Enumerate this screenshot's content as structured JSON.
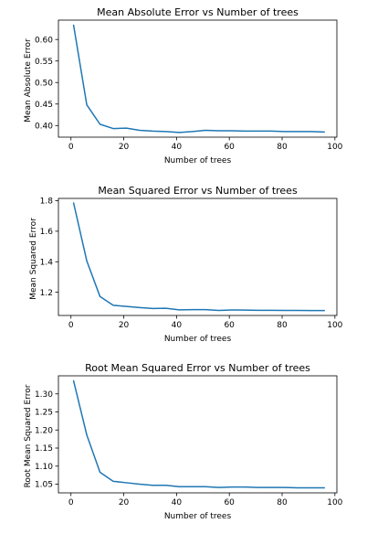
{
  "figure": {
    "background": "#ffffff"
  },
  "chart_data": [
    {
      "type": "line",
      "title": "Mean Absolute Error vs Number of trees",
      "xlabel": "Number of trees",
      "ylabel": "Mean Absolute Error",
      "xlim": [
        -4.75,
        100.75
      ],
      "ylim": [
        0.373,
        0.645
      ],
      "xticks": [
        0,
        20,
        40,
        60,
        80,
        100
      ],
      "xtick_labels": [
        "0",
        "20",
        "40",
        "60",
        "80",
        "100"
      ],
      "yticks": [
        0.4,
        0.45,
        0.5,
        0.55,
        0.6
      ],
      "ytick_labels": [
        "0.40",
        "0.45",
        "0.50",
        "0.55",
        "0.60"
      ],
      "grid": false,
      "line_color": "#1f77b4",
      "series": [
        {
          "x": [
            1,
            6,
            11,
            16,
            21,
            26,
            31,
            36,
            41,
            46,
            51,
            56,
            61,
            66,
            71,
            76,
            81,
            86,
            91,
            96
          ],
          "values": [
            0.633,
            0.448,
            0.403,
            0.393,
            0.394,
            0.389,
            0.387,
            0.386,
            0.384,
            0.386,
            0.389,
            0.388,
            0.388,
            0.387,
            0.387,
            0.387,
            0.386,
            0.386,
            0.386,
            0.385
          ]
        }
      ]
    },
    {
      "type": "line",
      "title": "Mean Squared Error vs Number of trees",
      "xlabel": "Number of trees",
      "ylabel": "Mean Squared Error",
      "xlim": [
        -4.75,
        100.75
      ],
      "ylim": [
        1.048,
        1.815
      ],
      "xticks": [
        0,
        20,
        40,
        60,
        80,
        100
      ],
      "xtick_labels": [
        "0",
        "20",
        "40",
        "60",
        "80",
        "100"
      ],
      "yticks": [
        1.2,
        1.4,
        1.6,
        1.8
      ],
      "ytick_labels": [
        "1.2",
        "1.4",
        "1.6",
        "1.8"
      ],
      "grid": false,
      "line_color": "#1f77b4",
      "series": [
        {
          "x": [
            1,
            6,
            11,
            16,
            21,
            26,
            31,
            36,
            41,
            46,
            51,
            56,
            61,
            66,
            71,
            76,
            81,
            86,
            91,
            96
          ],
          "values": [
            1.785,
            1.405,
            1.172,
            1.115,
            1.107,
            1.1,
            1.094,
            1.095,
            1.085,
            1.086,
            1.086,
            1.081,
            1.084,
            1.083,
            1.082,
            1.082,
            1.081,
            1.081,
            1.08,
            1.08
          ]
        }
      ]
    },
    {
      "type": "line",
      "title": "Root Mean Squared Error vs Number of trees",
      "xlabel": "Number of trees",
      "ylabel": "Root Mean Squared Error",
      "xlim": [
        -4.75,
        100.75
      ],
      "ylim": [
        1.026,
        1.35
      ],
      "xticks": [
        0,
        20,
        40,
        60,
        80,
        100
      ],
      "xtick_labels": [
        "0",
        "20",
        "40",
        "60",
        "80",
        "100"
      ],
      "yticks": [
        1.05,
        1.1,
        1.15,
        1.2,
        1.25,
        1.3
      ],
      "ytick_labels": [
        "1.05",
        "1.10",
        "1.15",
        "1.20",
        "1.25",
        "1.30"
      ],
      "grid": false,
      "line_color": "#1f77b4",
      "series": [
        {
          "x": [
            1,
            6,
            11,
            16,
            21,
            26,
            31,
            36,
            41,
            46,
            51,
            56,
            61,
            66,
            71,
            76,
            81,
            86,
            91,
            96
          ],
          "values": [
            1.336,
            1.186,
            1.083,
            1.058,
            1.054,
            1.05,
            1.047,
            1.047,
            1.043,
            1.043,
            1.043,
            1.041,
            1.042,
            1.042,
            1.041,
            1.041,
            1.041,
            1.04,
            1.04,
            1.04
          ]
        }
      ]
    }
  ]
}
